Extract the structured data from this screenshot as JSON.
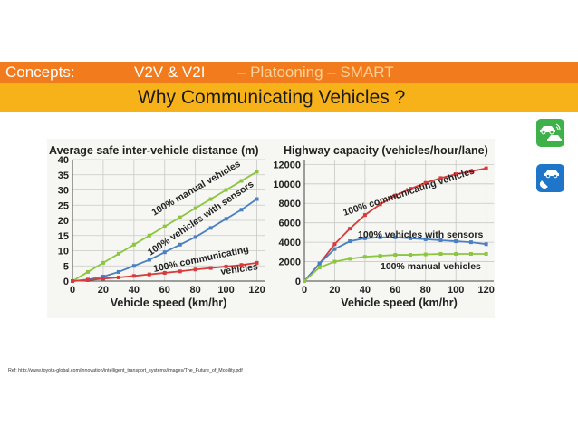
{
  "header": {
    "concepts": "Concepts:",
    "v2v": "V2V & V2I",
    "rest": " – Platooning – SMART",
    "subtitle": "Why Communicating Vehicles ?"
  },
  "icons": [
    "car-wireless-icon",
    "satellite-car-icon"
  ],
  "reference": "Ref: http://www.toyota-global.com/innovation/intelligent_transport_systems/images/The_Future_of_Mobility.pdf",
  "colors": {
    "orange_band": "#f27b1e",
    "yellow_band": "#f7b21a",
    "green": "#8cc63f",
    "blue": "#4a7fc1",
    "red": "#d73b3b"
  },
  "chart_data": [
    {
      "type": "line",
      "title": "Average safe inter-vehicle distance (m)",
      "xlabel": "Vehicle speed (km/hr)",
      "ylabel": "",
      "xlim": [
        0,
        125
      ],
      "ylim": [
        0,
        40
      ],
      "xticks": [
        0,
        20,
        40,
        60,
        80,
        100,
        120
      ],
      "yticks": [
        0,
        5,
        10,
        15,
        20,
        25,
        30,
        35,
        40
      ],
      "x": [
        0,
        10,
        20,
        30,
        40,
        50,
        60,
        70,
        80,
        90,
        100,
        110,
        120
      ],
      "series": [
        {
          "name": "100% manual vehicles",
          "color": "#8cc63f",
          "values": [
            0,
            3,
            6,
            9,
            12,
            15,
            18,
            21,
            24,
            27,
            30,
            33,
            36
          ]
        },
        {
          "name": "100% vehicles with sensors",
          "color": "#4a7fc1",
          "values": [
            0,
            0.5,
            1.5,
            3,
            5,
            7,
            9.5,
            12,
            14.5,
            17.5,
            20.5,
            23.5,
            27
          ]
        },
        {
          "name": "100% communicating vehicles",
          "color": "#d73b3b",
          "values": [
            0,
            0.3,
            0.8,
            1.2,
            1.7,
            2.2,
            2.7,
            3.2,
            3.8,
            4.3,
            4.8,
            5.3,
            6
          ]
        }
      ],
      "labels": [
        "100% manual vehicles",
        "100% vehicles with sensors",
        "100% communicating",
        "vehicles"
      ]
    },
    {
      "type": "line",
      "title": "Highway capacity (vehicles/hour/lane)",
      "xlabel": "Vehicle speed (km/hr)",
      "ylabel": "",
      "xlim": [
        0,
        125
      ],
      "ylim": [
        0,
        12500
      ],
      "xticks": [
        0,
        20,
        40,
        60,
        80,
        100,
        120
      ],
      "yticks": [
        0,
        2000,
        4000,
        6000,
        8000,
        10000,
        12000
      ],
      "x": [
        0,
        10,
        20,
        30,
        40,
        50,
        60,
        70,
        80,
        90,
        100,
        110,
        120
      ],
      "series": [
        {
          "name": "100% communicating vehicles",
          "color": "#d73b3b",
          "values": [
            0,
            1800,
            3800,
            5400,
            6800,
            7900,
            8800,
            9500,
            10100,
            10600,
            11000,
            11300,
            11600
          ]
        },
        {
          "name": "100% vehicles with sensors",
          "color": "#4a7fc1",
          "values": [
            0,
            1800,
            3300,
            4100,
            4400,
            4500,
            4500,
            4400,
            4300,
            4200,
            4100,
            4000,
            3800
          ]
        },
        {
          "name": "100% manual vehicles",
          "color": "#8cc63f",
          "values": [
            0,
            1400,
            2000,
            2300,
            2500,
            2600,
            2700,
            2700,
            2750,
            2800,
            2800,
            2800,
            2800
          ]
        }
      ],
      "labels": [
        "100% communicating vehicles",
        "100% vehicles with sensors",
        "100% manual vehicles"
      ]
    }
  ]
}
